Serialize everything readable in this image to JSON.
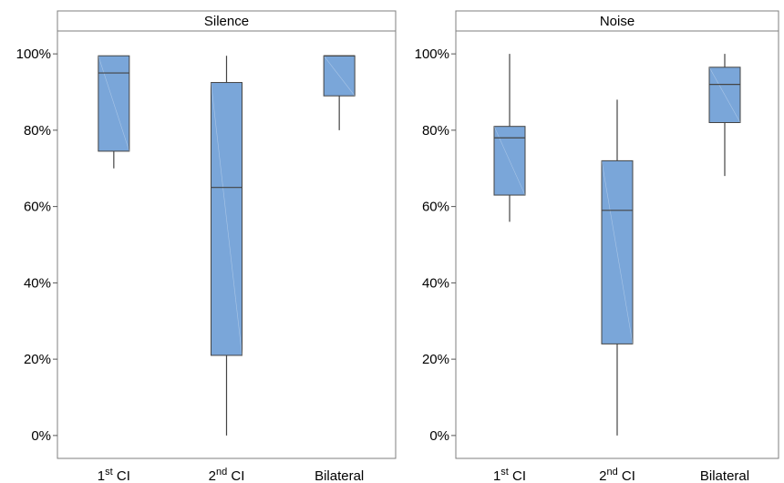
{
  "chart_data": [
    {
      "type": "box",
      "title": "Silence",
      "categories": [
        "1st CI",
        "2nd CI",
        "Bilateral"
      ],
      "category_labels": [
        {
          "base": "1",
          "sup": "st",
          "rest": " CI"
        },
        {
          "base": "2",
          "sup": "nd",
          "rest": " CI"
        },
        {
          "base": "Bilateral",
          "sup": "",
          "rest": ""
        }
      ],
      "boxes": [
        {
          "min": 70,
          "q1": 74.5,
          "median": 95,
          "q3": 99.5,
          "max": 99.5
        },
        {
          "min": 0,
          "q1": 21,
          "median": 65,
          "q3": 92.5,
          "max": 99.5
        },
        {
          "min": 80,
          "q1": 89,
          "median": 99.5,
          "q3": 99.5,
          "max": 99.5
        }
      ],
      "yticks": [
        "0%",
        "20%",
        "40%",
        "60%",
        "80%",
        "100%"
      ],
      "ylim": [
        -6,
        106
      ]
    },
    {
      "type": "box",
      "title": "Noise",
      "categories": [
        "1st CI",
        "2nd CI",
        "Bilateral"
      ],
      "category_labels": [
        {
          "base": "1",
          "sup": "st",
          "rest": " CI"
        },
        {
          "base": "2",
          "sup": "nd",
          "rest": " CI"
        },
        {
          "base": "Bilateral",
          "sup": "",
          "rest": ""
        }
      ],
      "boxes": [
        {
          "min": 56,
          "q1": 63,
          "median": 78,
          "q3": 81,
          "max": 100
        },
        {
          "min": 0,
          "q1": 24,
          "median": 59,
          "q3": 72,
          "max": 88
        },
        {
          "min": 68,
          "q1": 82,
          "median": 92,
          "q3": 96.5,
          "max": 100
        }
      ],
      "yticks": [
        "0%",
        "20%",
        "40%",
        "60%",
        "80%",
        "100%"
      ],
      "ylim": [
        -6,
        106
      ]
    }
  ],
  "colors": {
    "box_fill": "#7aa6d9",
    "box_stroke": "#444444",
    "frame": "#7f7f7f"
  }
}
